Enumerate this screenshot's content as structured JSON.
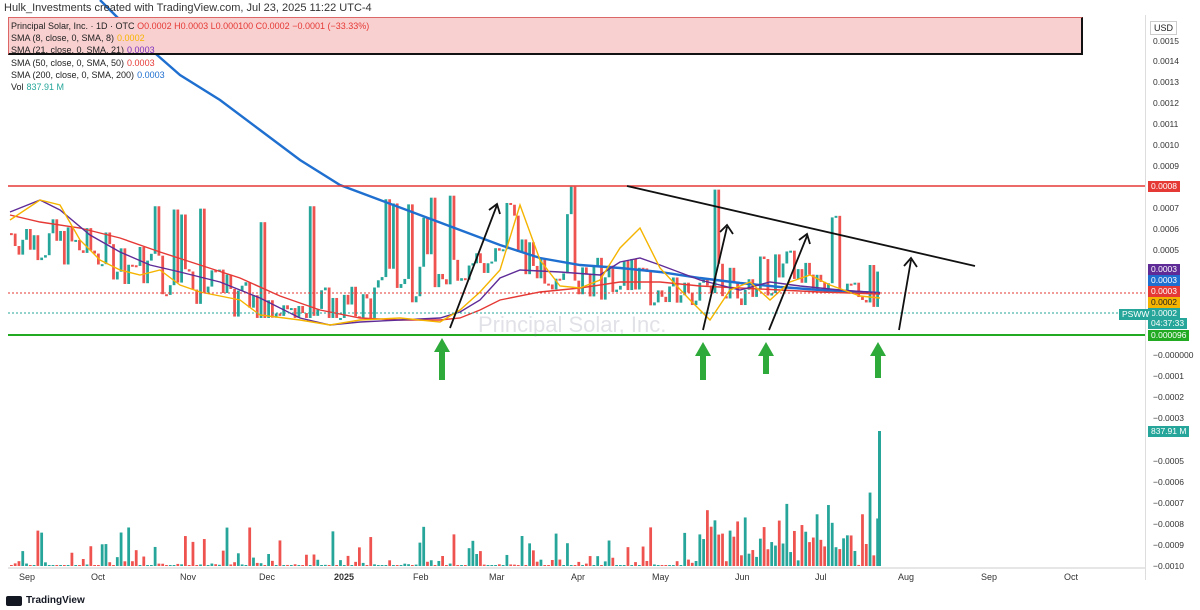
{
  "header": {
    "text": "Hulk_Investments created with TradingView.com, Jul 23, 2025 11:22 UTC-4"
  },
  "legend": {
    "title": "Principal Solar, Inc. · 1D · OTC",
    "ohlc": "O0.0002 H0.0003 L0.000100 C0.0002 −0.0001 (−33.33%)",
    "sma8": {
      "label": "SMA (8, close, 0, SMA, 8)",
      "value": "0.0002",
      "color": "#f5b400"
    },
    "sma21": {
      "label": "SMA (21, close, 0, SMA, 21)",
      "value": "0.0003",
      "color": "#7b2fbe"
    },
    "sma50": {
      "label": "SMA (50, close, 0, SMA, 50)",
      "value": "0.0003",
      "color": "#e53935"
    },
    "sma200": {
      "label": "SMA (200, close, 0, SMA, 200)",
      "value": "0.0003",
      "color": "#1e6fcf"
    },
    "vol": {
      "label": "Vol",
      "value": "837.91 M",
      "color": "#26a69a"
    }
  },
  "watermark": "Principal Solar, Inc.",
  "currency": "USD",
  "ticker": "PSWW",
  "y_axis": [
    "0.0015",
    "0.0014",
    "0.0013",
    "0.0012",
    "0.0011",
    "0.0010",
    "0.0009",
    "0.0007",
    "0.0006",
    "0.0005",
    "−0.000000",
    "−0.0001",
    "−0.0002",
    "−0.0003",
    "−0.0005",
    "−0.0006",
    "−0.0007",
    "−0.0008",
    "−0.0009",
    "−0.0010"
  ],
  "badges": {
    "resistance": "0.0008",
    "sma21": "0.0003",
    "sma200": "0.0003",
    "sma50": "0.0003",
    "sma8": "0.0002",
    "price": "0.0002",
    "countdown": "04:37:33",
    "support": "0.000096",
    "volume": "837.91 M"
  },
  "x_axis": [
    "Sep",
    "Oct",
    "Nov",
    "Dec",
    "2025",
    "Feb",
    "Mar",
    "Apr",
    "May",
    "Jun",
    "Jul",
    "Aug",
    "Sep",
    "Oct"
  ],
  "chart_data": {
    "type": "candlestick",
    "symbol": "PSWW",
    "interval": "1D",
    "ylim": [
      9.6e-06,
      0.0015
    ],
    "levels": {
      "resistance": 0.0008,
      "support": 9.6e-05,
      "last_close": 0.0002
    },
    "monthly_closes": [
      {
        "month": "Sep",
        "close": 0.00055
      },
      {
        "month": "Oct",
        "close": 0.00045
      },
      {
        "month": "Nov",
        "close": 0.0003
      },
      {
        "month": "Dec",
        "close": 0.00015
      },
      {
        "month": "Jan",
        "close": 0.00015
      },
      {
        "month": "Feb",
        "close": 0.0004
      },
      {
        "month": "Mar",
        "close": 0.0004
      },
      {
        "month": "Apr",
        "close": 0.0003
      },
      {
        "month": "May",
        "close": 0.00025
      },
      {
        "month": "Jun",
        "close": 0.00035
      },
      {
        "month": "Jul",
        "close": 0.00025
      }
    ],
    "volume_peak": "837.91 M"
  }
}
